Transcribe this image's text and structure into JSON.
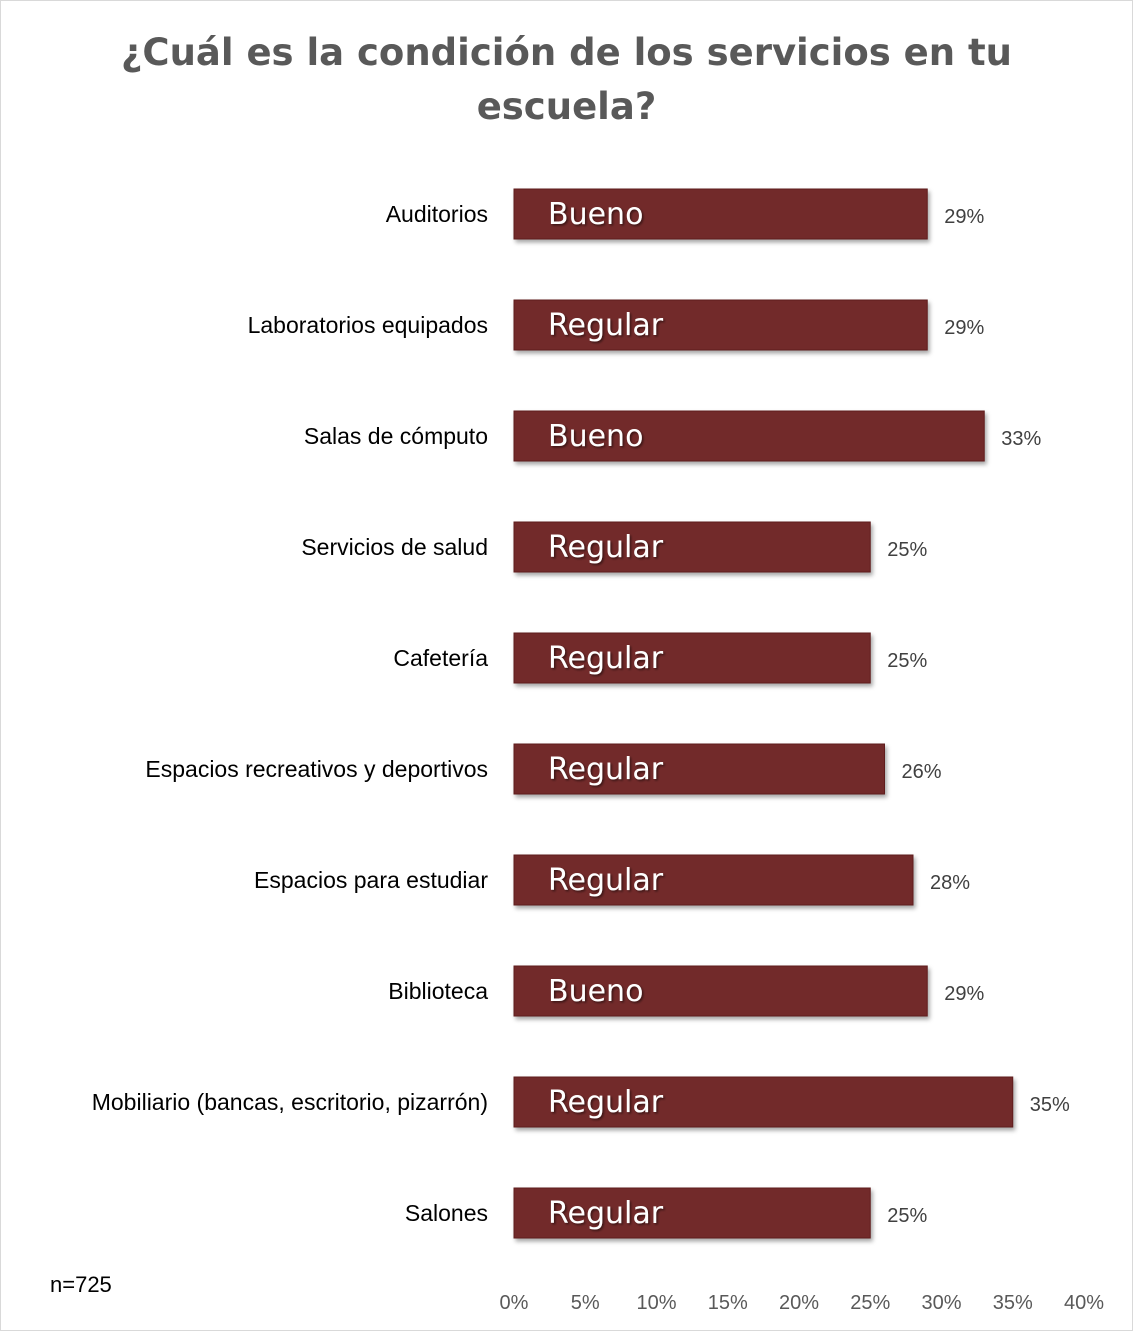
{
  "title": {
    "line1": "¿Cuál es la condición de los servicios en tu",
    "line2": "escuela?"
  },
  "note": "n=725",
  "colors": {
    "bar": "#722a2a",
    "bar_edge": "#5e1f1f"
  },
  "chart_data": {
    "type": "bar",
    "orientation": "horizontal",
    "categories": [
      "Auditorios",
      "Laboratorios equipados",
      "Salas de cómputo",
      "Servicios de salud",
      "Cafetería",
      "Espacios recreativos y deportivos",
      "Espacios para estudiar",
      "Biblioteca",
      "Mobiliario (bancas, escritorio, pizarrón)",
      "Salones"
    ],
    "values": [
      29,
      29,
      33,
      25,
      25,
      26,
      28,
      29,
      35,
      25
    ],
    "value_labels": [
      "29%",
      "29%",
      "33%",
      "25%",
      "25%",
      "26%",
      "28%",
      "29%",
      "35%",
      "25%"
    ],
    "bar_labels": [
      "Bueno",
      "Regular",
      "Bueno",
      "Regular",
      "Regular",
      "Regular",
      "Regular",
      "Bueno",
      "Regular",
      "Regular"
    ],
    "xlim": [
      0,
      40
    ],
    "xticks": [
      "0%",
      "5%",
      "10%",
      "15%",
      "20%",
      "25%",
      "30%",
      "35%",
      "40%"
    ],
    "grid": false,
    "legend": "none"
  }
}
